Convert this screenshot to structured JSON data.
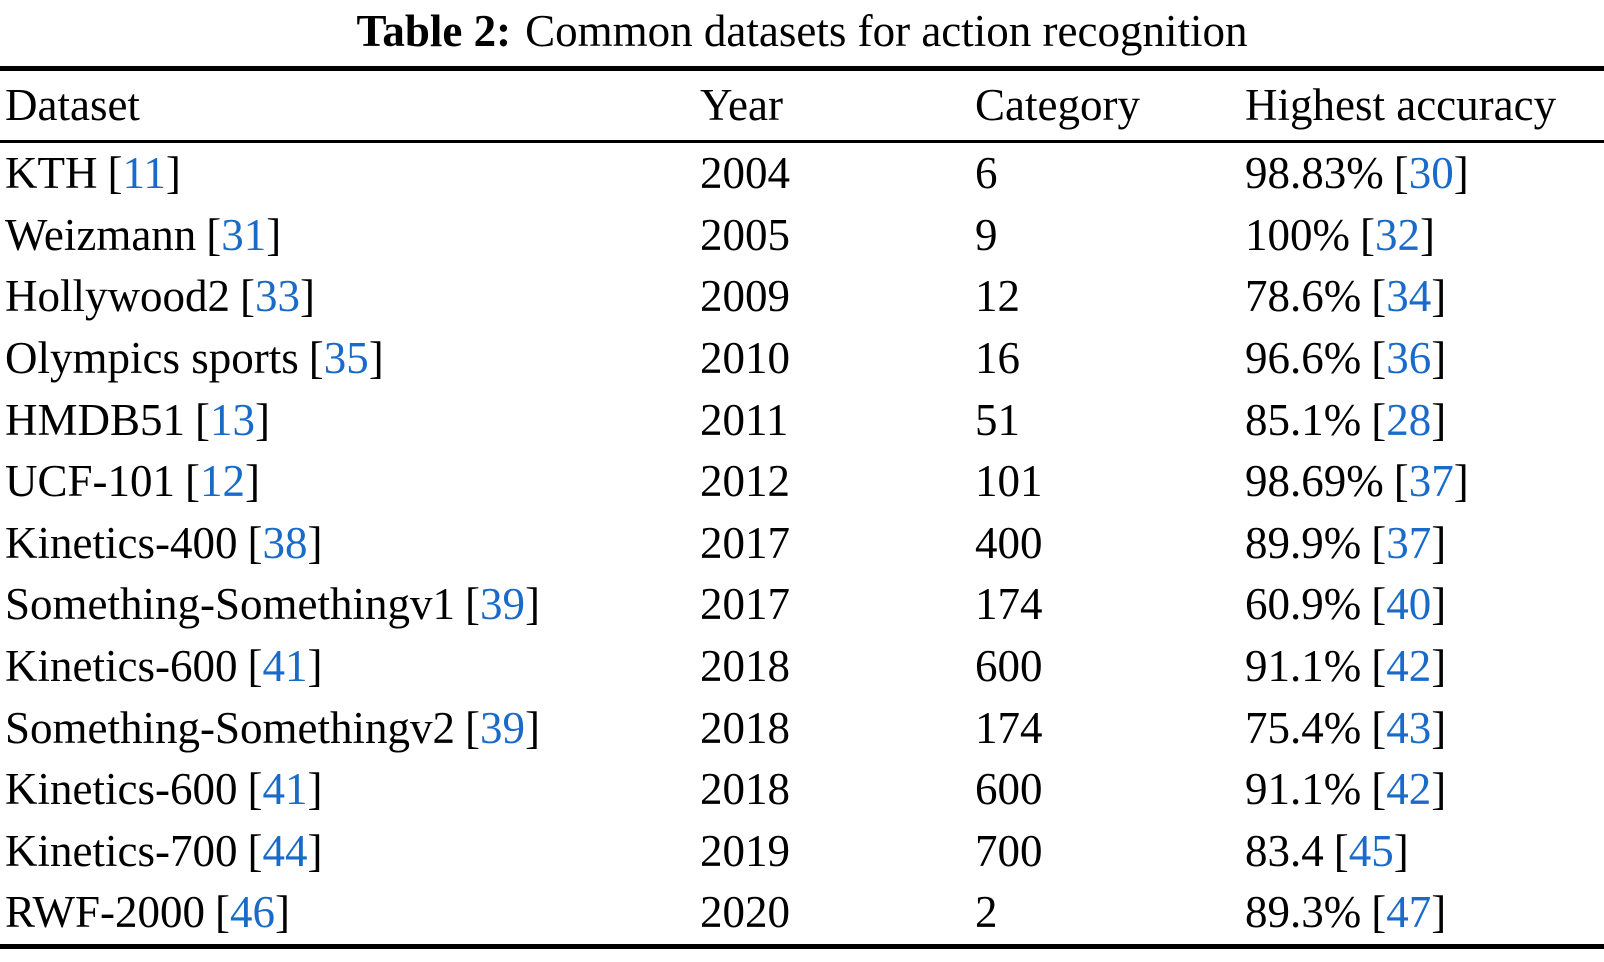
{
  "caption": {
    "label": "Table 2:",
    "text": "Common datasets for action recognition"
  },
  "columns": {
    "dataset": "Dataset",
    "year": "Year",
    "category": "Category",
    "accuracy": "Highest accuracy"
  },
  "colors": {
    "citation_blue": "#1a6bc9",
    "text_black": "#000000",
    "background": "#ffffff"
  },
  "chart_data": {
    "type": "table",
    "title": "Table 2: Common datasets for action recognition",
    "columns": [
      "Dataset",
      "Year",
      "Category",
      "Highest accuracy"
    ],
    "rows_flat": [
      [
        "KTH [11]",
        "2004",
        "6",
        "98.83% [30]"
      ],
      [
        "Weizmann [31]",
        "2005",
        "9",
        "100% [32]"
      ],
      [
        "Hollywood2 [33]",
        "2009",
        "12",
        "78.6% [34]"
      ],
      [
        "Olympics sports [35]",
        "2010",
        "16",
        "96.6% [36]"
      ],
      [
        "HMDB51 [13]",
        "2011",
        "51",
        "85.1% [28]"
      ],
      [
        "UCF-101 [12]",
        "2012",
        "101",
        "98.69% [37]"
      ],
      [
        "Kinetics-400 [38]",
        "2017",
        "400",
        "89.9% [37]"
      ],
      [
        "Something-Somethingv1 [39]",
        "2017",
        "174",
        "60.9% [40]"
      ],
      [
        "Kinetics-600 [41]",
        "2018",
        "600",
        "91.1% [42]"
      ],
      [
        "Something-Somethingv2 [39]",
        "2018",
        "174",
        "75.4% [43]"
      ],
      [
        "Kinetics-600 [41]",
        "2018",
        "600",
        "91.1% [42]"
      ],
      [
        "Kinetics-700 [44]",
        "2019",
        "700",
        "83.4 [45]"
      ],
      [
        "RWF-2000 [46]",
        "2020",
        "2",
        "89.3% [47]"
      ]
    ]
  },
  "rows": [
    {
      "dataset": "KTH",
      "dataset_cite": "11",
      "year": "2004",
      "category": "6",
      "accuracy": "98.83%",
      "accuracy_cite": "30"
    },
    {
      "dataset": "Weizmann",
      "dataset_cite": "31",
      "year": "2005",
      "category": "9",
      "accuracy": "100%",
      "accuracy_cite": "32"
    },
    {
      "dataset": "Hollywood2",
      "dataset_cite": "33",
      "year": "2009",
      "category": "12",
      "accuracy": "78.6%",
      "accuracy_cite": "34"
    },
    {
      "dataset": "Olympics sports",
      "dataset_cite": "35",
      "year": "2010",
      "category": "16",
      "accuracy": "96.6%",
      "accuracy_cite": "36"
    },
    {
      "dataset": "HMDB51",
      "dataset_cite": "13",
      "year": "2011",
      "category": "51",
      "accuracy": "85.1%",
      "accuracy_cite": "28"
    },
    {
      "dataset": "UCF-101",
      "dataset_cite": "12",
      "year": "2012",
      "category": "101",
      "accuracy": "98.69%",
      "accuracy_cite": "37"
    },
    {
      "dataset": "Kinetics-400",
      "dataset_cite": "38",
      "year": "2017",
      "category": "400",
      "accuracy": "89.9%",
      "accuracy_cite": "37"
    },
    {
      "dataset": "Something-Somethingv1",
      "dataset_cite": "39",
      "year": "2017",
      "category": "174",
      "accuracy": "60.9%",
      "accuracy_cite": "40"
    },
    {
      "dataset": "Kinetics-600",
      "dataset_cite": "41",
      "year": "2018",
      "category": "600",
      "accuracy": "91.1%",
      "accuracy_cite": "42"
    },
    {
      "dataset": "Something-Somethingv2",
      "dataset_cite": "39",
      "year": "2018",
      "category": "174",
      "accuracy": "75.4%",
      "accuracy_cite": "43"
    },
    {
      "dataset": "Kinetics-600",
      "dataset_cite": "41",
      "year": "2018",
      "category": "600",
      "accuracy": "91.1%",
      "accuracy_cite": "42"
    },
    {
      "dataset": "Kinetics-700",
      "dataset_cite": "44",
      "year": "2019",
      "category": "700",
      "accuracy": "83.4",
      "accuracy_cite": "45"
    },
    {
      "dataset": "RWF-2000",
      "dataset_cite": "46",
      "year": "2020",
      "category": "2",
      "accuracy": "89.3%",
      "accuracy_cite": "47"
    }
  ]
}
